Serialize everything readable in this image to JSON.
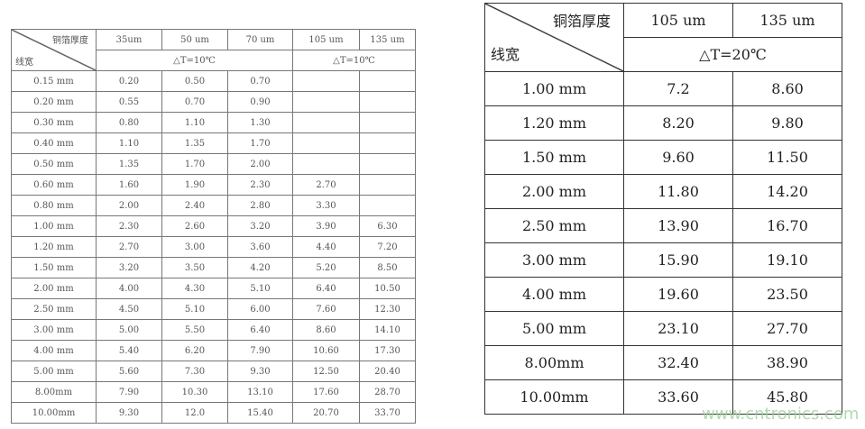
{
  "left_table": {
    "corner_top": "铜箔厚度",
    "corner_bottom": "线宽",
    "thickness_headers": [
      "35um",
      "50 um",
      "70 um",
      "105 um",
      "135 um"
    ],
    "delta_t_group1": "△T=10℃",
    "delta_t_group2": "△T=10℃",
    "rows": [
      [
        "0.15 mm",
        "0.20",
        "0.50",
        "0.70",
        "",
        ""
      ],
      [
        "0.20 mm",
        "0.55",
        "0.70",
        "0.90",
        "",
        ""
      ],
      [
        "0.30 mm",
        "0.80",
        "1.10",
        "1.30",
        "",
        ""
      ],
      [
        "0.40 mm",
        "1.10",
        "1.35",
        "1.70",
        "",
        ""
      ],
      [
        "0.50 mm",
        "1.35",
        "1.70",
        "2.00",
        "",
        ""
      ],
      [
        "0.60 mm",
        "1.60",
        "1.90",
        "2.30",
        "2.70",
        ""
      ],
      [
        "0.80 mm",
        "2.00",
        "2.40",
        "2.80",
        "3.30",
        ""
      ],
      [
        "1.00 mm",
        "2.30",
        "2.60",
        "3.20",
        "3.90",
        "6.30"
      ],
      [
        "1.20 mm",
        "2.70",
        "3.00",
        "3.60",
        "4.40",
        "7.20"
      ],
      [
        "1.50 mm",
        "3.20",
        "3.50",
        "4.20",
        "5.20",
        "8.50"
      ],
      [
        "2.00 mm",
        "4.00",
        "4.30",
        "5.10",
        "6.40",
        "10.50"
      ],
      [
        "2.50 mm",
        "4.50",
        "5.10",
        "6.00",
        "7.60",
        "12.30"
      ],
      [
        "3.00 mm",
        "5.00",
        "5.50",
        "6.40",
        "8.60",
        "14.10"
      ],
      [
        "4.00 mm",
        "5.40",
        "6.20",
        "7.90",
        "10.60",
        "17.30"
      ],
      [
        "5.00 mm",
        "5.60",
        "7.30",
        "9.30",
        "12.50",
        "20.40"
      ],
      [
        "8.00mm",
        "7.90",
        "10.30",
        "13.10",
        "17.60",
        "28.70"
      ],
      [
        "10.00mm",
        "9.30",
        "12.0",
        "15.40",
        "20.70",
        "33.70"
      ]
    ]
  },
  "right_table": {
    "corner_top": "铜箔厚度",
    "corner_bottom": "线宽",
    "thickness_headers": [
      "105 um",
      "135 um"
    ],
    "delta_t": "△T=20℃",
    "rows": [
      [
        "1.00 mm",
        "7.2",
        "8.60"
      ],
      [
        "1.20 mm",
        "8.20",
        "9.80"
      ],
      [
        "1.50 mm",
        "9.60",
        "11.50"
      ],
      [
        "2.00 mm",
        "11.80",
        "14.20"
      ],
      [
        "2.50 mm",
        "13.90",
        "16.70"
      ],
      [
        "3.00 mm",
        "15.90",
        "19.10"
      ],
      [
        "4.00 mm",
        "19.60",
        "23.50"
      ],
      [
        "5.00 mm",
        "23.10",
        "27.70"
      ],
      [
        "8.00mm",
        "32.40",
        "38.90"
      ],
      [
        "10.00mm",
        "33.60",
        "45.80"
      ]
    ]
  },
  "watermark": "www.cntronics.com"
}
